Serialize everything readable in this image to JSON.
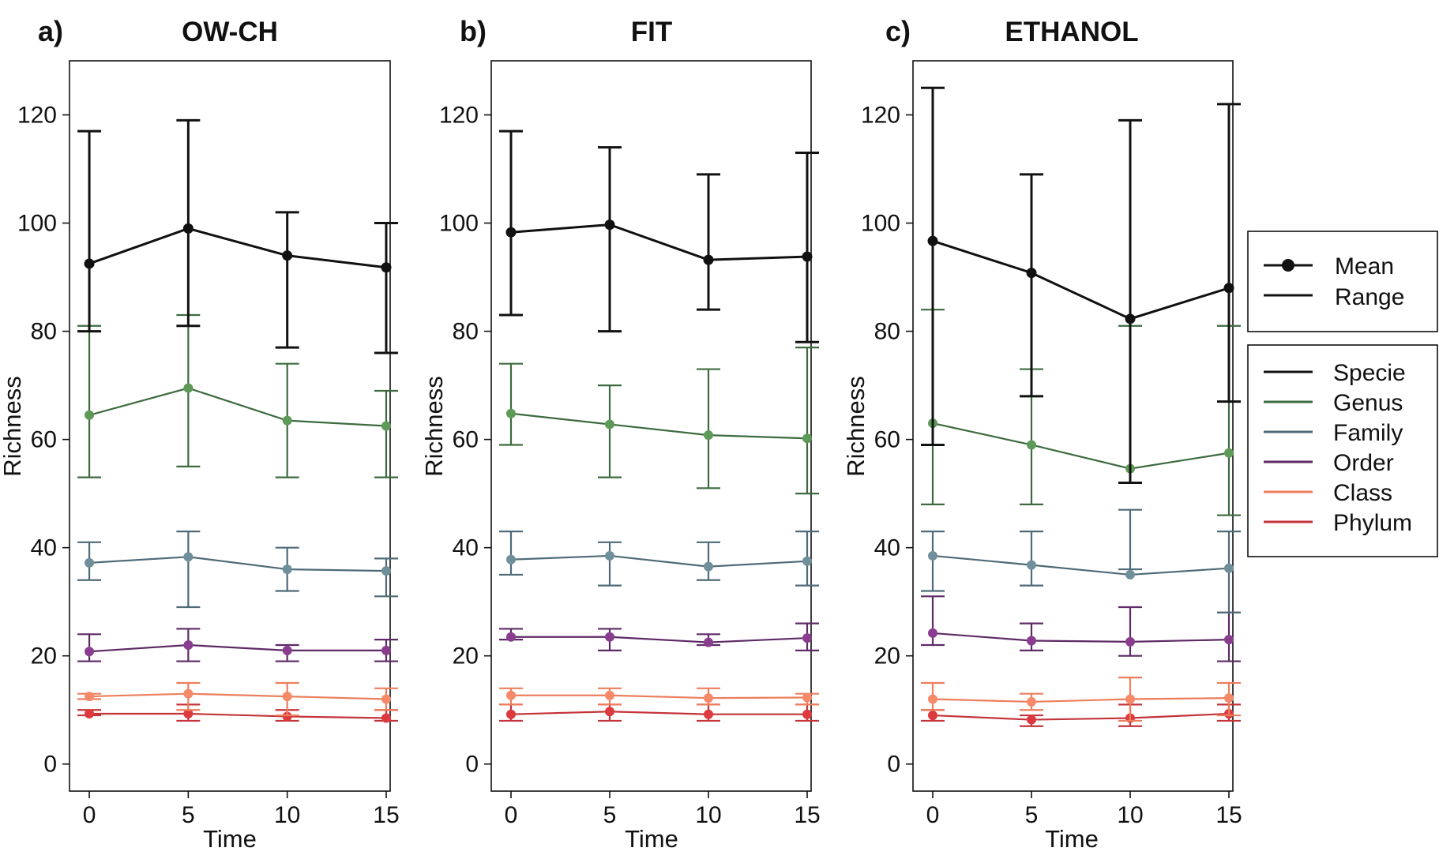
{
  "chart_data": [
    {
      "type": "line",
      "panel_label": "a)",
      "title": "OW-CH",
      "xlabel": "Time",
      "ylabel": "Richness",
      "x": [
        0,
        5,
        10,
        15
      ],
      "xticks": [
        0,
        5,
        10,
        15
      ],
      "yticks": [
        0,
        20,
        40,
        60,
        80,
        100,
        120
      ],
      "xlim": [
        -1,
        15.2
      ],
      "ylim": [
        -5,
        130
      ],
      "series": [
        {
          "name": "Specie",
          "mean": [
            92.5,
            99,
            94,
            91.8
          ],
          "min": [
            80,
            81,
            77,
            76
          ],
          "max": [
            117,
            119,
            102,
            100
          ]
        },
        {
          "name": "Genus",
          "mean": [
            64.5,
            69.5,
            63.5,
            62.5
          ],
          "min": [
            53,
            55,
            53,
            53
          ],
          "max": [
            81,
            83,
            74,
            69
          ]
        },
        {
          "name": "Family",
          "mean": [
            37.2,
            38.3,
            36,
            35.7
          ],
          "min": [
            34,
            29,
            32,
            31
          ],
          "max": [
            41,
            43,
            40,
            38
          ]
        },
        {
          "name": "Order",
          "mean": [
            20.8,
            22,
            21,
            21
          ],
          "min": [
            19,
            19,
            19,
            19
          ],
          "max": [
            24,
            25,
            22,
            23
          ]
        },
        {
          "name": "Class",
          "mean": [
            12.5,
            13,
            12.5,
            12
          ],
          "min": [
            12,
            10,
            9,
            10
          ],
          "max": [
            13,
            15,
            15,
            14
          ]
        },
        {
          "name": "Phylum",
          "mean": [
            9.3,
            9.3,
            8.8,
            8.5
          ],
          "min": [
            9,
            8,
            8,
            8
          ],
          "max": [
            10,
            11,
            10,
            10
          ]
        }
      ]
    },
    {
      "type": "line",
      "panel_label": "b)",
      "title": "FIT",
      "xlabel": "Time",
      "ylabel": "Richness",
      "x": [
        0,
        5,
        10,
        15
      ],
      "xticks": [
        0,
        5,
        10,
        15
      ],
      "yticks": [
        0,
        20,
        40,
        60,
        80,
        100,
        120
      ],
      "xlim": [
        -1,
        15.2
      ],
      "ylim": [
        -5,
        130
      ],
      "series": [
        {
          "name": "Specie",
          "mean": [
            98.3,
            99.7,
            93.2,
            93.8
          ],
          "min": [
            83,
            80,
            84,
            78
          ],
          "max": [
            117,
            114,
            109,
            113
          ]
        },
        {
          "name": "Genus",
          "mean": [
            64.8,
            62.8,
            60.8,
            60.2
          ],
          "min": [
            59,
            53,
            51,
            50
          ],
          "max": [
            74,
            70,
            73,
            77
          ]
        },
        {
          "name": "Family",
          "mean": [
            37.8,
            38.5,
            36.5,
            37.5
          ],
          "min": [
            35,
            33,
            34,
            33
          ],
          "max": [
            43,
            41,
            41,
            43
          ]
        },
        {
          "name": "Order",
          "mean": [
            23.5,
            23.5,
            22.5,
            23.3
          ],
          "min": [
            23,
            21,
            22,
            21
          ],
          "max": [
            25,
            25,
            24,
            26
          ]
        },
        {
          "name": "Class",
          "mean": [
            12.7,
            12.7,
            12.2,
            12.3
          ],
          "min": [
            11,
            11,
            11,
            11
          ],
          "max": [
            14,
            14,
            14,
            13
          ]
        },
        {
          "name": "Phylum",
          "mean": [
            9.2,
            9.7,
            9.2,
            9.2
          ],
          "min": [
            8,
            8,
            8,
            8
          ],
          "max": [
            11,
            11,
            11,
            11
          ]
        }
      ]
    },
    {
      "type": "line",
      "panel_label": "c)",
      "title": "ETHANOL",
      "xlabel": "Time",
      "ylabel": "Richness",
      "x": [
        0,
        5,
        10,
        15
      ],
      "xticks": [
        0,
        5,
        10,
        15
      ],
      "yticks": [
        0,
        20,
        40,
        60,
        80,
        100,
        120
      ],
      "xlim": [
        -1,
        15.2
      ],
      "ylim": [
        -5,
        130
      ],
      "series": [
        {
          "name": "Specie",
          "mean": [
            96.7,
            90.8,
            82.3,
            88
          ],
          "min": [
            59,
            68,
            52,
            67
          ],
          "max": [
            125,
            109,
            119,
            122
          ]
        },
        {
          "name": "Genus",
          "mean": [
            63,
            59,
            54.6,
            57.5
          ],
          "min": [
            48,
            48,
            52,
            46
          ],
          "max": [
            84,
            73,
            81,
            81
          ]
        },
        {
          "name": "Family",
          "mean": [
            38.5,
            36.8,
            35,
            36.2
          ],
          "min": [
            32,
            33,
            36,
            28
          ],
          "max": [
            43,
            43,
            47,
            43
          ]
        },
        {
          "name": "Order",
          "mean": [
            24.2,
            22.8,
            22.6,
            23
          ],
          "min": [
            22,
            21,
            20,
            19
          ],
          "max": [
            31,
            26,
            29,
            28
          ]
        },
        {
          "name": "Class",
          "mean": [
            12,
            11.5,
            12,
            12.2
          ],
          "min": [
            10,
            10,
            8,
            9
          ],
          "max": [
            15,
            13,
            16,
            15
          ]
        },
        {
          "name": "Phylum",
          "mean": [
            9,
            8.2,
            8.5,
            9.3
          ],
          "min": [
            8,
            7,
            7,
            8
          ],
          "max": [
            10,
            9,
            11,
            11
          ]
        }
      ]
    }
  ],
  "legend_markers": {
    "mean": "Mean",
    "range": "Range"
  },
  "legend_levels": [
    "Specie",
    "Genus",
    "Family",
    "Order",
    "Class",
    "Phylum"
  ],
  "colors": {
    "Specie": {
      "line": "#111111",
      "marker": "#111111"
    },
    "Genus": {
      "line": "#3d6b3f",
      "marker": "#5e9a57"
    },
    "Family": {
      "line": "#4f6a78",
      "marker": "#6f8f9b"
    },
    "Order": {
      "line": "#5e2a66",
      "marker": "#8a3d8f"
    },
    "Class": {
      "line": "#ec7e5c",
      "marker": "#f58a6a"
    },
    "Phylum": {
      "line": "#c4343a",
      "marker": "#dc3a3f"
    }
  }
}
